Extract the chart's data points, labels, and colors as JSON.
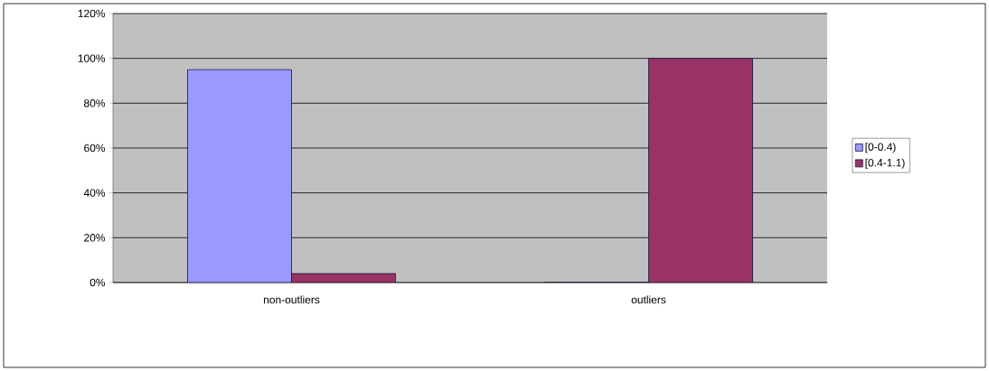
{
  "chart_data": {
    "type": "bar",
    "categories": [
      "non-outliers",
      "outliers"
    ],
    "series": [
      {
        "name": "[0-0.4)",
        "color": "#9999ff",
        "values": [
          95,
          0
        ]
      },
      {
        "name": "[0.4-1.1)",
        "color": "#993366",
        "values": [
          4,
          100
        ]
      }
    ],
    "ylim": [
      0,
      120
    ],
    "yticks": [
      {
        "value": 0,
        "label": "0%"
      },
      {
        "value": 20,
        "label": "20%"
      },
      {
        "value": 40,
        "label": "40%"
      },
      {
        "value": 60,
        "label": "60%"
      },
      {
        "value": 80,
        "label": "80%"
      },
      {
        "value": 100,
        "label": "100%"
      },
      {
        "value": 120,
        "label": "120%"
      }
    ],
    "grid": "y",
    "legend": "right"
  }
}
